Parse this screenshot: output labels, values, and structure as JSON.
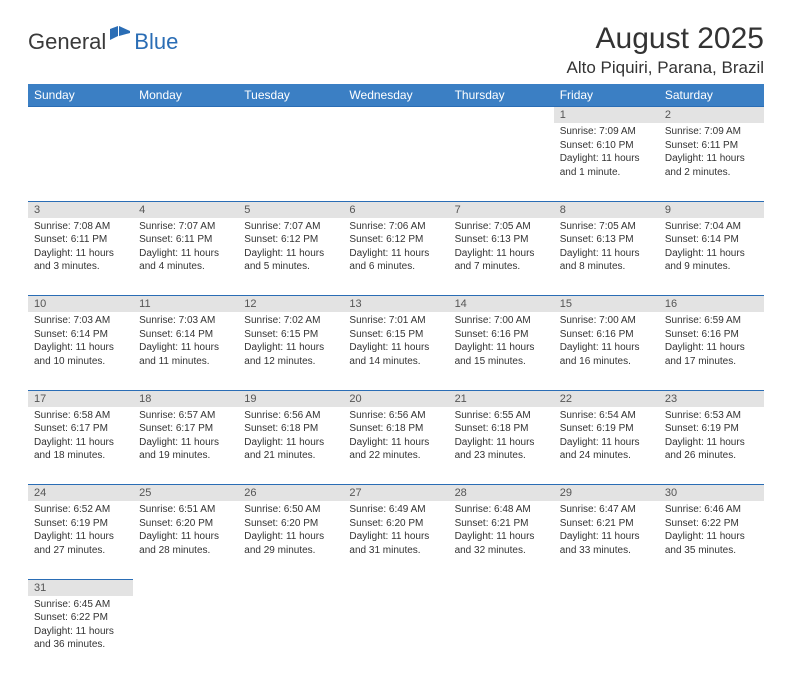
{
  "logo": {
    "general": "General",
    "blue": "Blue"
  },
  "title": "August 2025",
  "location": "Alto Piquiri, Parana, Brazil",
  "colors": {
    "header_bg": "#3b7fc4",
    "header_text": "#ffffff",
    "daynum_bg": "#e3e3e3",
    "border": "#2a6db5",
    "text": "#333333",
    "logo_blue": "#2a6db5"
  },
  "font": {
    "family": "Arial",
    "title_size": 30,
    "location_size": 17,
    "th_size": 12,
    "cell_size": 10
  },
  "days_of_week": [
    "Sunday",
    "Monday",
    "Tuesday",
    "Wednesday",
    "Thursday",
    "Friday",
    "Saturday"
  ],
  "weeks": [
    [
      null,
      null,
      null,
      null,
      null,
      {
        "n": "1",
        "sr": "Sunrise: 7:09 AM",
        "ss": "Sunset: 6:10 PM",
        "d1": "Daylight: 11 hours",
        "d2": "and 1 minute."
      },
      {
        "n": "2",
        "sr": "Sunrise: 7:09 AM",
        "ss": "Sunset: 6:11 PM",
        "d1": "Daylight: 11 hours",
        "d2": "and 2 minutes."
      }
    ],
    [
      {
        "n": "3",
        "sr": "Sunrise: 7:08 AM",
        "ss": "Sunset: 6:11 PM",
        "d1": "Daylight: 11 hours",
        "d2": "and 3 minutes."
      },
      {
        "n": "4",
        "sr": "Sunrise: 7:07 AM",
        "ss": "Sunset: 6:11 PM",
        "d1": "Daylight: 11 hours",
        "d2": "and 4 minutes."
      },
      {
        "n": "5",
        "sr": "Sunrise: 7:07 AM",
        "ss": "Sunset: 6:12 PM",
        "d1": "Daylight: 11 hours",
        "d2": "and 5 minutes."
      },
      {
        "n": "6",
        "sr": "Sunrise: 7:06 AM",
        "ss": "Sunset: 6:12 PM",
        "d1": "Daylight: 11 hours",
        "d2": "and 6 minutes."
      },
      {
        "n": "7",
        "sr": "Sunrise: 7:05 AM",
        "ss": "Sunset: 6:13 PM",
        "d1": "Daylight: 11 hours",
        "d2": "and 7 minutes."
      },
      {
        "n": "8",
        "sr": "Sunrise: 7:05 AM",
        "ss": "Sunset: 6:13 PM",
        "d1": "Daylight: 11 hours",
        "d2": "and 8 minutes."
      },
      {
        "n": "9",
        "sr": "Sunrise: 7:04 AM",
        "ss": "Sunset: 6:14 PM",
        "d1": "Daylight: 11 hours",
        "d2": "and 9 minutes."
      }
    ],
    [
      {
        "n": "10",
        "sr": "Sunrise: 7:03 AM",
        "ss": "Sunset: 6:14 PM",
        "d1": "Daylight: 11 hours",
        "d2": "and 10 minutes."
      },
      {
        "n": "11",
        "sr": "Sunrise: 7:03 AM",
        "ss": "Sunset: 6:14 PM",
        "d1": "Daylight: 11 hours",
        "d2": "and 11 minutes."
      },
      {
        "n": "12",
        "sr": "Sunrise: 7:02 AM",
        "ss": "Sunset: 6:15 PM",
        "d1": "Daylight: 11 hours",
        "d2": "and 12 minutes."
      },
      {
        "n": "13",
        "sr": "Sunrise: 7:01 AM",
        "ss": "Sunset: 6:15 PM",
        "d1": "Daylight: 11 hours",
        "d2": "and 14 minutes."
      },
      {
        "n": "14",
        "sr": "Sunrise: 7:00 AM",
        "ss": "Sunset: 6:16 PM",
        "d1": "Daylight: 11 hours",
        "d2": "and 15 minutes."
      },
      {
        "n": "15",
        "sr": "Sunrise: 7:00 AM",
        "ss": "Sunset: 6:16 PM",
        "d1": "Daylight: 11 hours",
        "d2": "and 16 minutes."
      },
      {
        "n": "16",
        "sr": "Sunrise: 6:59 AM",
        "ss": "Sunset: 6:16 PM",
        "d1": "Daylight: 11 hours",
        "d2": "and 17 minutes."
      }
    ],
    [
      {
        "n": "17",
        "sr": "Sunrise: 6:58 AM",
        "ss": "Sunset: 6:17 PM",
        "d1": "Daylight: 11 hours",
        "d2": "and 18 minutes."
      },
      {
        "n": "18",
        "sr": "Sunrise: 6:57 AM",
        "ss": "Sunset: 6:17 PM",
        "d1": "Daylight: 11 hours",
        "d2": "and 19 minutes."
      },
      {
        "n": "19",
        "sr": "Sunrise: 6:56 AM",
        "ss": "Sunset: 6:18 PM",
        "d1": "Daylight: 11 hours",
        "d2": "and 21 minutes."
      },
      {
        "n": "20",
        "sr": "Sunrise: 6:56 AM",
        "ss": "Sunset: 6:18 PM",
        "d1": "Daylight: 11 hours",
        "d2": "and 22 minutes."
      },
      {
        "n": "21",
        "sr": "Sunrise: 6:55 AM",
        "ss": "Sunset: 6:18 PM",
        "d1": "Daylight: 11 hours",
        "d2": "and 23 minutes."
      },
      {
        "n": "22",
        "sr": "Sunrise: 6:54 AM",
        "ss": "Sunset: 6:19 PM",
        "d1": "Daylight: 11 hours",
        "d2": "and 24 minutes."
      },
      {
        "n": "23",
        "sr": "Sunrise: 6:53 AM",
        "ss": "Sunset: 6:19 PM",
        "d1": "Daylight: 11 hours",
        "d2": "and 26 minutes."
      }
    ],
    [
      {
        "n": "24",
        "sr": "Sunrise: 6:52 AM",
        "ss": "Sunset: 6:19 PM",
        "d1": "Daylight: 11 hours",
        "d2": "and 27 minutes."
      },
      {
        "n": "25",
        "sr": "Sunrise: 6:51 AM",
        "ss": "Sunset: 6:20 PM",
        "d1": "Daylight: 11 hours",
        "d2": "and 28 minutes."
      },
      {
        "n": "26",
        "sr": "Sunrise: 6:50 AM",
        "ss": "Sunset: 6:20 PM",
        "d1": "Daylight: 11 hours",
        "d2": "and 29 minutes."
      },
      {
        "n": "27",
        "sr": "Sunrise: 6:49 AM",
        "ss": "Sunset: 6:20 PM",
        "d1": "Daylight: 11 hours",
        "d2": "and 31 minutes."
      },
      {
        "n": "28",
        "sr": "Sunrise: 6:48 AM",
        "ss": "Sunset: 6:21 PM",
        "d1": "Daylight: 11 hours",
        "d2": "and 32 minutes."
      },
      {
        "n": "29",
        "sr": "Sunrise: 6:47 AM",
        "ss": "Sunset: 6:21 PM",
        "d1": "Daylight: 11 hours",
        "d2": "and 33 minutes."
      },
      {
        "n": "30",
        "sr": "Sunrise: 6:46 AM",
        "ss": "Sunset: 6:22 PM",
        "d1": "Daylight: 11 hours",
        "d2": "and 35 minutes."
      }
    ],
    [
      {
        "n": "31",
        "sr": "Sunrise: 6:45 AM",
        "ss": "Sunset: 6:22 PM",
        "d1": "Daylight: 11 hours",
        "d2": "and 36 minutes."
      },
      null,
      null,
      null,
      null,
      null,
      null
    ]
  ]
}
